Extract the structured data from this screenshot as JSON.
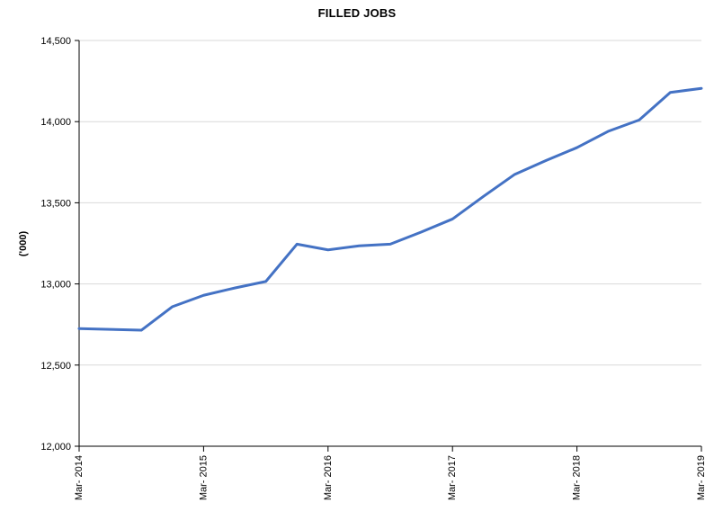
{
  "page": {
    "background": "#ffffff"
  },
  "chart_data": {
    "type": "line",
    "title": "FILLED JOBS",
    "ylabel": "('000)",
    "x": [
      "Mar-2014",
      "Jun-2014",
      "Sep-2014",
      "Dec-2014",
      "Mar-2015",
      "Jun-2015",
      "Sep-2015",
      "Dec-2015",
      "Mar-2016",
      "Jun-2016",
      "Sep-2016",
      "Dec-2016",
      "Mar-2017",
      "Jun-2017",
      "Sep-2017",
      "Dec-2017",
      "Mar-2018",
      "Jun-2018",
      "Sep-2018",
      "Dec-2018",
      "Mar-2019"
    ],
    "values": [
      12725,
      12720,
      12715,
      12860,
      12930,
      12975,
      13015,
      13245,
      13210,
      13235,
      13245,
      13320,
      13400,
      13540,
      13675,
      13760,
      13840,
      13940,
      14010,
      14180,
      14205
    ],
    "x_tick_labels": [
      "Mar- 2014",
      "Mar- 2015",
      "Mar- 2016",
      "Mar- 2017",
      "Mar- 2018",
      "Mar- 2019"
    ],
    "x_tick_every": 4,
    "y_ticks": [
      12000,
      12500,
      13000,
      13500,
      14000,
      14500
    ],
    "y_tick_labels": [
      "12,000",
      "12,500",
      "13,000",
      "13,500",
      "14,000",
      "14,500"
    ],
    "ylim": [
      12000,
      14500
    ],
    "grid": "horizontal",
    "legend": "none",
    "line_color": "#4472C4",
    "gridline_color": "#D9D9D9",
    "axis_color": "#000000"
  }
}
